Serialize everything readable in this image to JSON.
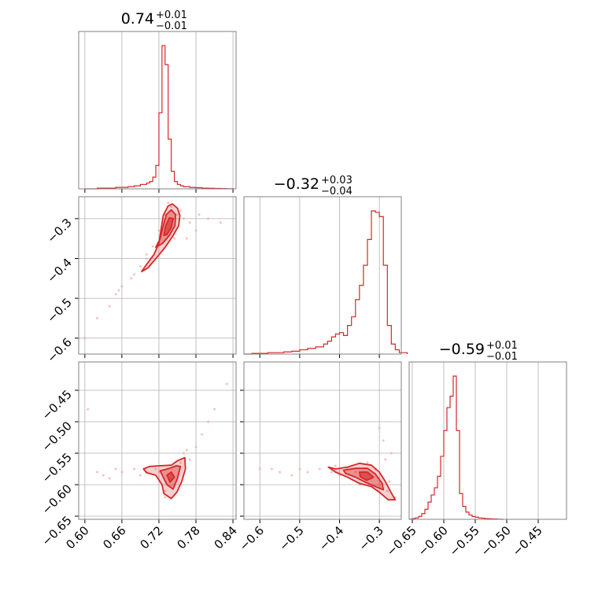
{
  "chart_data": {
    "type": "corner",
    "colors": {
      "line": "#d62728",
      "fill": "#d62728",
      "scatter": "#f3a8a8",
      "grid": "#b0b0b0",
      "frame": "#808080"
    },
    "grid": true,
    "parameters": [
      {
        "id": "p0",
        "range": [
          0.59,
          0.845
        ],
        "ticks": [
          0.6,
          0.66,
          0.72,
          0.78,
          0.84
        ],
        "tick_labels": [
          "0.60",
          "0.66",
          "0.72",
          "0.78",
          "0.84"
        ],
        "title": {
          "value": "0.74",
          "plus": "+0.01",
          "minus": "−0.01"
        },
        "hist_x": [
          0.6,
          0.61,
          0.62,
          0.63,
          0.64,
          0.65,
          0.66,
          0.67,
          0.68,
          0.69,
          0.7,
          0.705,
          0.71,
          0.715,
          0.72,
          0.725,
          0.73,
          0.735,
          0.74,
          0.745,
          0.75,
          0.755,
          0.76,
          0.77,
          0.78,
          0.79,
          0.8,
          0.81,
          0.82,
          0.83
        ],
        "hist_y": [
          0.0,
          0.0,
          0.005,
          0.005,
          0.005,
          0.01,
          0.01,
          0.015,
          0.02,
          0.03,
          0.04,
          0.05,
          0.08,
          0.16,
          0.52,
          0.98,
          0.85,
          0.34,
          0.12,
          0.05,
          0.03,
          0.02,
          0.015,
          0.01,
          0.008,
          0.005,
          0.004,
          0.003,
          0.002,
          0.001
        ]
      },
      {
        "id": "p1",
        "range": [
          -0.64,
          -0.245
        ],
        "ticks": [
          -0.6,
          -0.5,
          -0.4,
          -0.3
        ],
        "tick_labels": [
          "−0.6",
          "−0.5",
          "−0.4",
          "−0.3"
        ],
        "title": {
          "value": "−0.32",
          "plus": "+0.03",
          "minus": "−0.04"
        },
        "hist_x": [
          -0.64,
          -0.62,
          -0.6,
          -0.58,
          -0.56,
          -0.54,
          -0.52,
          -0.5,
          -0.48,
          -0.46,
          -0.44,
          -0.43,
          -0.42,
          -0.41,
          -0.4,
          -0.39,
          -0.38,
          -0.37,
          -0.36,
          -0.35,
          -0.34,
          -0.33,
          -0.32,
          -0.31,
          -0.3,
          -0.29,
          -0.28,
          -0.27,
          -0.26,
          -0.25
        ],
        "hist_y": [
          0.0,
          0.005,
          0.005,
          0.01,
          0.01,
          0.015,
          0.02,
          0.03,
          0.04,
          0.05,
          0.07,
          0.09,
          0.12,
          0.14,
          0.15,
          0.13,
          0.2,
          0.26,
          0.38,
          0.48,
          0.62,
          0.8,
          1.0,
          0.99,
          0.96,
          0.62,
          0.2,
          0.07,
          0.03,
          0.01
        ]
      },
      {
        "id": "p2",
        "range": [
          -0.655,
          -0.405
        ],
        "ticks": [
          -0.65,
          -0.6,
          -0.55,
          -0.5,
          -0.45
        ],
        "tick_labels": [
          "−0.65",
          "−0.60",
          "−0.55",
          "−0.50",
          "−0.45"
        ],
        "title": {
          "value": "−0.59",
          "plus": "+0.01",
          "minus": "−0.01"
        },
        "hist_x": [
          -0.655,
          -0.65,
          -0.645,
          -0.64,
          -0.635,
          -0.63,
          -0.625,
          -0.62,
          -0.615,
          -0.61,
          -0.605,
          -0.6,
          -0.595,
          -0.59,
          -0.585,
          -0.58,
          -0.575,
          -0.57,
          -0.565,
          -0.56,
          -0.555,
          -0.55,
          -0.545,
          -0.54,
          -0.535,
          -0.53,
          -0.525,
          -0.52,
          -0.515,
          -0.51
        ],
        "hist_y": [
          0.0,
          0.005,
          0.01,
          0.02,
          0.04,
          0.07,
          0.12,
          0.17,
          0.22,
          0.3,
          0.44,
          0.62,
          0.78,
          0.86,
          1.0,
          0.62,
          0.18,
          0.09,
          0.05,
          0.03,
          0.02,
          0.015,
          0.01,
          0.008,
          0.005,
          0.004,
          0.003,
          0.002,
          0.001,
          0.0
        ]
      }
    ],
    "pairs": [
      {
        "x_param": 0,
        "y_param": 1,
        "samples": [
          [
            0.74,
            -0.32
          ],
          [
            0.745,
            -0.3
          ],
          [
            0.73,
            -0.34
          ],
          [
            0.72,
            -0.36
          ],
          [
            0.7,
            -0.4
          ],
          [
            0.69,
            -0.42
          ],
          [
            0.68,
            -0.44
          ],
          [
            0.66,
            -0.47
          ],
          [
            0.65,
            -0.49
          ],
          [
            0.64,
            -0.52
          ],
          [
            0.75,
            -0.29
          ],
          [
            0.76,
            -0.3
          ],
          [
            0.77,
            -0.31
          ],
          [
            0.78,
            -0.33
          ],
          [
            0.74,
            -0.27
          ],
          [
            0.73,
            -0.29
          ],
          [
            0.755,
            -0.28
          ],
          [
            0.71,
            -0.37
          ],
          [
            0.765,
            -0.35
          ],
          [
            0.72,
            -0.33
          ],
          [
            0.6,
            -0.6
          ],
          [
            0.62,
            -0.55
          ],
          [
            0.785,
            -0.29
          ],
          [
            0.8,
            -0.3
          ],
          [
            0.82,
            -0.31
          ],
          [
            0.735,
            -0.26
          ],
          [
            0.745,
            -0.35
          ],
          [
            0.7,
            -0.39
          ],
          [
            0.675,
            -0.45
          ],
          [
            0.655,
            -0.48
          ]
        ],
        "contours": [
          [
            [
              0.692,
              -0.433
            ],
            [
              0.7,
              -0.415
            ],
            [
              0.712,
              -0.39
            ],
            [
              0.72,
              -0.362
            ],
            [
              0.724,
              -0.322
            ],
            [
              0.727,
              -0.292
            ],
            [
              0.735,
              -0.268
            ],
            [
              0.742,
              -0.263
            ],
            [
              0.75,
              -0.274
            ],
            [
              0.754,
              -0.292
            ],
            [
              0.752,
              -0.318
            ],
            [
              0.742,
              -0.345
            ],
            [
              0.73,
              -0.372
            ],
            [
              0.718,
              -0.395
            ],
            [
              0.702,
              -0.424
            ]
          ],
          [
            [
              0.715,
              -0.372
            ],
            [
              0.722,
              -0.35
            ],
            [
              0.727,
              -0.318
            ],
            [
              0.732,
              -0.29
            ],
            [
              0.74,
              -0.278
            ],
            [
              0.747,
              -0.29
            ],
            [
              0.746,
              -0.318
            ],
            [
              0.737,
              -0.342
            ],
            [
              0.726,
              -0.362
            ]
          ],
          [
            [
              0.728,
              -0.342
            ],
            [
              0.731,
              -0.318
            ],
            [
              0.737,
              -0.298
            ],
            [
              0.743,
              -0.3
            ],
            [
              0.74,
              -0.322
            ],
            [
              0.733,
              -0.34
            ]
          ]
        ]
      },
      {
        "x_param": 0,
        "y_param": 2,
        "samples": [
          [
            0.74,
            -0.59
          ],
          [
            0.72,
            -0.58
          ],
          [
            0.7,
            -0.58
          ],
          [
            0.68,
            -0.575
          ],
          [
            0.66,
            -0.58
          ],
          [
            0.64,
            -0.59
          ],
          [
            0.62,
            -0.58
          ],
          [
            0.76,
            -0.55
          ],
          [
            0.78,
            -0.54
          ],
          [
            0.79,
            -0.52
          ],
          [
            0.8,
            -0.5
          ],
          [
            0.81,
            -0.48
          ],
          [
            0.75,
            -0.57
          ],
          [
            0.77,
            -0.56
          ],
          [
            0.73,
            -0.61
          ],
          [
            0.73,
            -0.62
          ],
          [
            0.745,
            -0.6
          ],
          [
            0.605,
            -0.48
          ],
          [
            0.63,
            -0.585
          ],
          [
            0.65,
            -0.575
          ],
          [
            0.83,
            -0.44
          ],
          [
            0.69,
            -0.585
          ],
          [
            0.715,
            -0.575
          ],
          [
            0.755,
            -0.565
          ],
          [
            0.765,
            -0.545
          ]
        ],
        "contours": [
          [
            [
              0.695,
              -0.575
            ],
            [
              0.705,
              -0.571
            ],
            [
              0.72,
              -0.57
            ],
            [
              0.74,
              -0.569
            ],
            [
              0.75,
              -0.562
            ],
            [
              0.762,
              -0.557
            ],
            [
              0.763,
              -0.575
            ],
            [
              0.757,
              -0.595
            ],
            [
              0.749,
              -0.612
            ],
            [
              0.74,
              -0.622
            ],
            [
              0.728,
              -0.614
            ],
            [
              0.725,
              -0.6
            ],
            [
              0.715,
              -0.585
            ],
            [
              0.7,
              -0.581
            ]
          ],
          [
            [
              0.722,
              -0.578
            ],
            [
              0.737,
              -0.574
            ],
            [
              0.748,
              -0.57
            ],
            [
              0.755,
              -0.571
            ],
            [
              0.75,
              -0.59
            ],
            [
              0.743,
              -0.607
            ],
            [
              0.733,
              -0.6
            ],
            [
              0.727,
              -0.588
            ]
          ],
          [
            [
              0.733,
              -0.585
            ],
            [
              0.74,
              -0.58
            ],
            [
              0.745,
              -0.588
            ],
            [
              0.738,
              -0.596
            ]
          ]
        ]
      },
      {
        "x_param": 1,
        "y_param": 2,
        "samples": [
          [
            -0.32,
            -0.59
          ],
          [
            -0.3,
            -0.6
          ],
          [
            -0.28,
            -0.61
          ],
          [
            -0.34,
            -0.58
          ],
          [
            -0.38,
            -0.575
          ],
          [
            -0.42,
            -0.58
          ],
          [
            -0.45,
            -0.575
          ],
          [
            -0.48,
            -0.58
          ],
          [
            -0.5,
            -0.575
          ],
          [
            -0.55,
            -0.58
          ],
          [
            -0.6,
            -0.575
          ],
          [
            -0.27,
            -0.55
          ],
          [
            -0.29,
            -0.53
          ],
          [
            -0.3,
            -0.51
          ],
          [
            -0.26,
            -0.62
          ],
          [
            -0.33,
            -0.565
          ],
          [
            -0.31,
            -0.575
          ],
          [
            -0.36,
            -0.58
          ],
          [
            -0.4,
            -0.585
          ],
          [
            -0.52,
            -0.585
          ],
          [
            -0.57,
            -0.575
          ],
          [
            -0.285,
            -0.56
          ],
          [
            -0.275,
            -0.595
          ],
          [
            -0.35,
            -0.6
          ],
          [
            -0.41,
            -0.57
          ]
        ],
        "contours": [
          [
            [
              -0.428,
              -0.572
            ],
            [
              -0.41,
              -0.575
            ],
            [
              -0.38,
              -0.572
            ],
            [
              -0.35,
              -0.566
            ],
            [
              -0.32,
              -0.569
            ],
            [
              -0.3,
              -0.58
            ],
            [
              -0.285,
              -0.595
            ],
            [
              -0.271,
              -0.612
            ],
            [
              -0.26,
              -0.624
            ],
            [
              -0.278,
              -0.624
            ],
            [
              -0.3,
              -0.612
            ],
            [
              -0.32,
              -0.603
            ],
            [
              -0.35,
              -0.598
            ],
            [
              -0.38,
              -0.588
            ],
            [
              -0.41,
              -0.58
            ]
          ],
          [
            [
              -0.39,
              -0.577
            ],
            [
              -0.36,
              -0.574
            ],
            [
              -0.33,
              -0.574
            ],
            [
              -0.31,
              -0.583
            ],
            [
              -0.293,
              -0.598
            ],
            [
              -0.29,
              -0.608
            ],
            [
              -0.31,
              -0.603
            ],
            [
              -0.335,
              -0.596
            ],
            [
              -0.36,
              -0.588
            ],
            [
              -0.385,
              -0.582
            ]
          ],
          [
            [
              -0.35,
              -0.58
            ],
            [
              -0.33,
              -0.58
            ],
            [
              -0.315,
              -0.588
            ],
            [
              -0.332,
              -0.593
            ],
            [
              -0.348,
              -0.587
            ]
          ]
        ]
      }
    ]
  }
}
